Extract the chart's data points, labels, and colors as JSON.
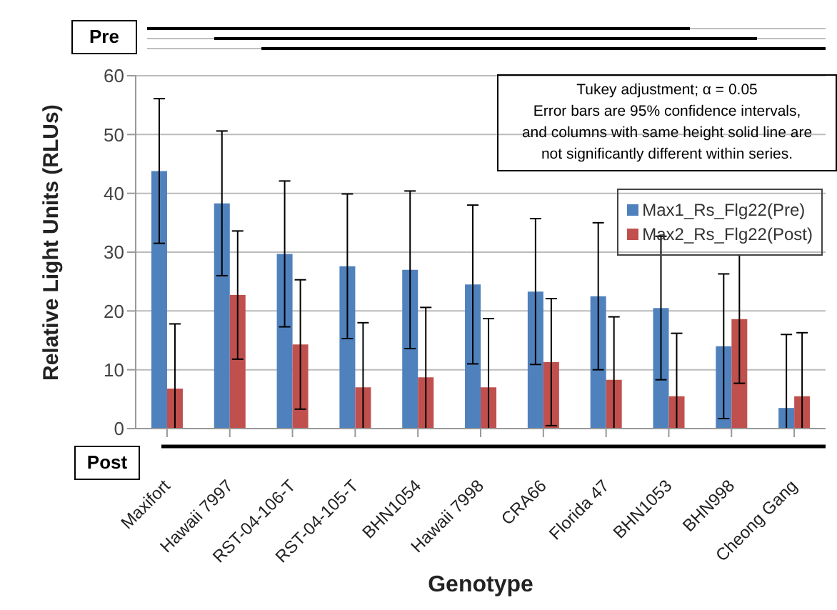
{
  "chart_data": {
    "type": "bar",
    "xlabel": "Genotype",
    "ylabel": "Relative Light Units (RLUs)",
    "categories": [
      "Maxifort",
      "Hawaii 7997",
      "RST-04-106-T",
      "RST-04-105-T",
      "BHN1054",
      "Hawaii 7998",
      "CRA66",
      "Florida 47",
      "BHN1053",
      "BHN998",
      "Cheong Gang"
    ],
    "series": [
      {
        "name": "Max1_Rs_Flg22(Pre)",
        "color": "#4f81bd",
        "values": [
          43.8,
          38.3,
          29.7,
          27.6,
          27.0,
          24.5,
          23.3,
          22.5,
          20.5,
          14.0,
          3.5
        ],
        "errors": [
          12.3,
          12.3,
          12.4,
          12.3,
          13.4,
          13.5,
          12.4,
          12.5,
          12.2,
          12.3,
          [
            0,
            16.0
          ]
        ]
      },
      {
        "name": "Max2_Rs_Flg22(Post)",
        "color": "#c0504d",
        "values": [
          6.8,
          22.7,
          14.3,
          7.0,
          8.7,
          7.0,
          11.3,
          8.3,
          5.5,
          18.6,
          5.5
        ],
        "errors": [
          [
            0,
            17.8
          ],
          10.9,
          11.0,
          [
            0,
            18.0
          ],
          [
            0,
            20.6
          ],
          [
            0,
            18.7
          ],
          10.8,
          [
            0,
            19.0
          ],
          [
            0,
            16.2
          ],
          10.9,
          [
            0,
            16.3
          ]
        ]
      }
    ],
    "ylim": [
      0,
      60
    ],
    "yticks": [
      0,
      10,
      20,
      30,
      40,
      50,
      60
    ],
    "grid": "y",
    "legend": "top right",
    "annotations": [
      "Pre",
      "Post",
      "Tukey adjustment; α = 0.05\nError bars are 95% confidence intervals,\nand columns with same height solid line are\nnot significantly different within series."
    ]
  }
}
